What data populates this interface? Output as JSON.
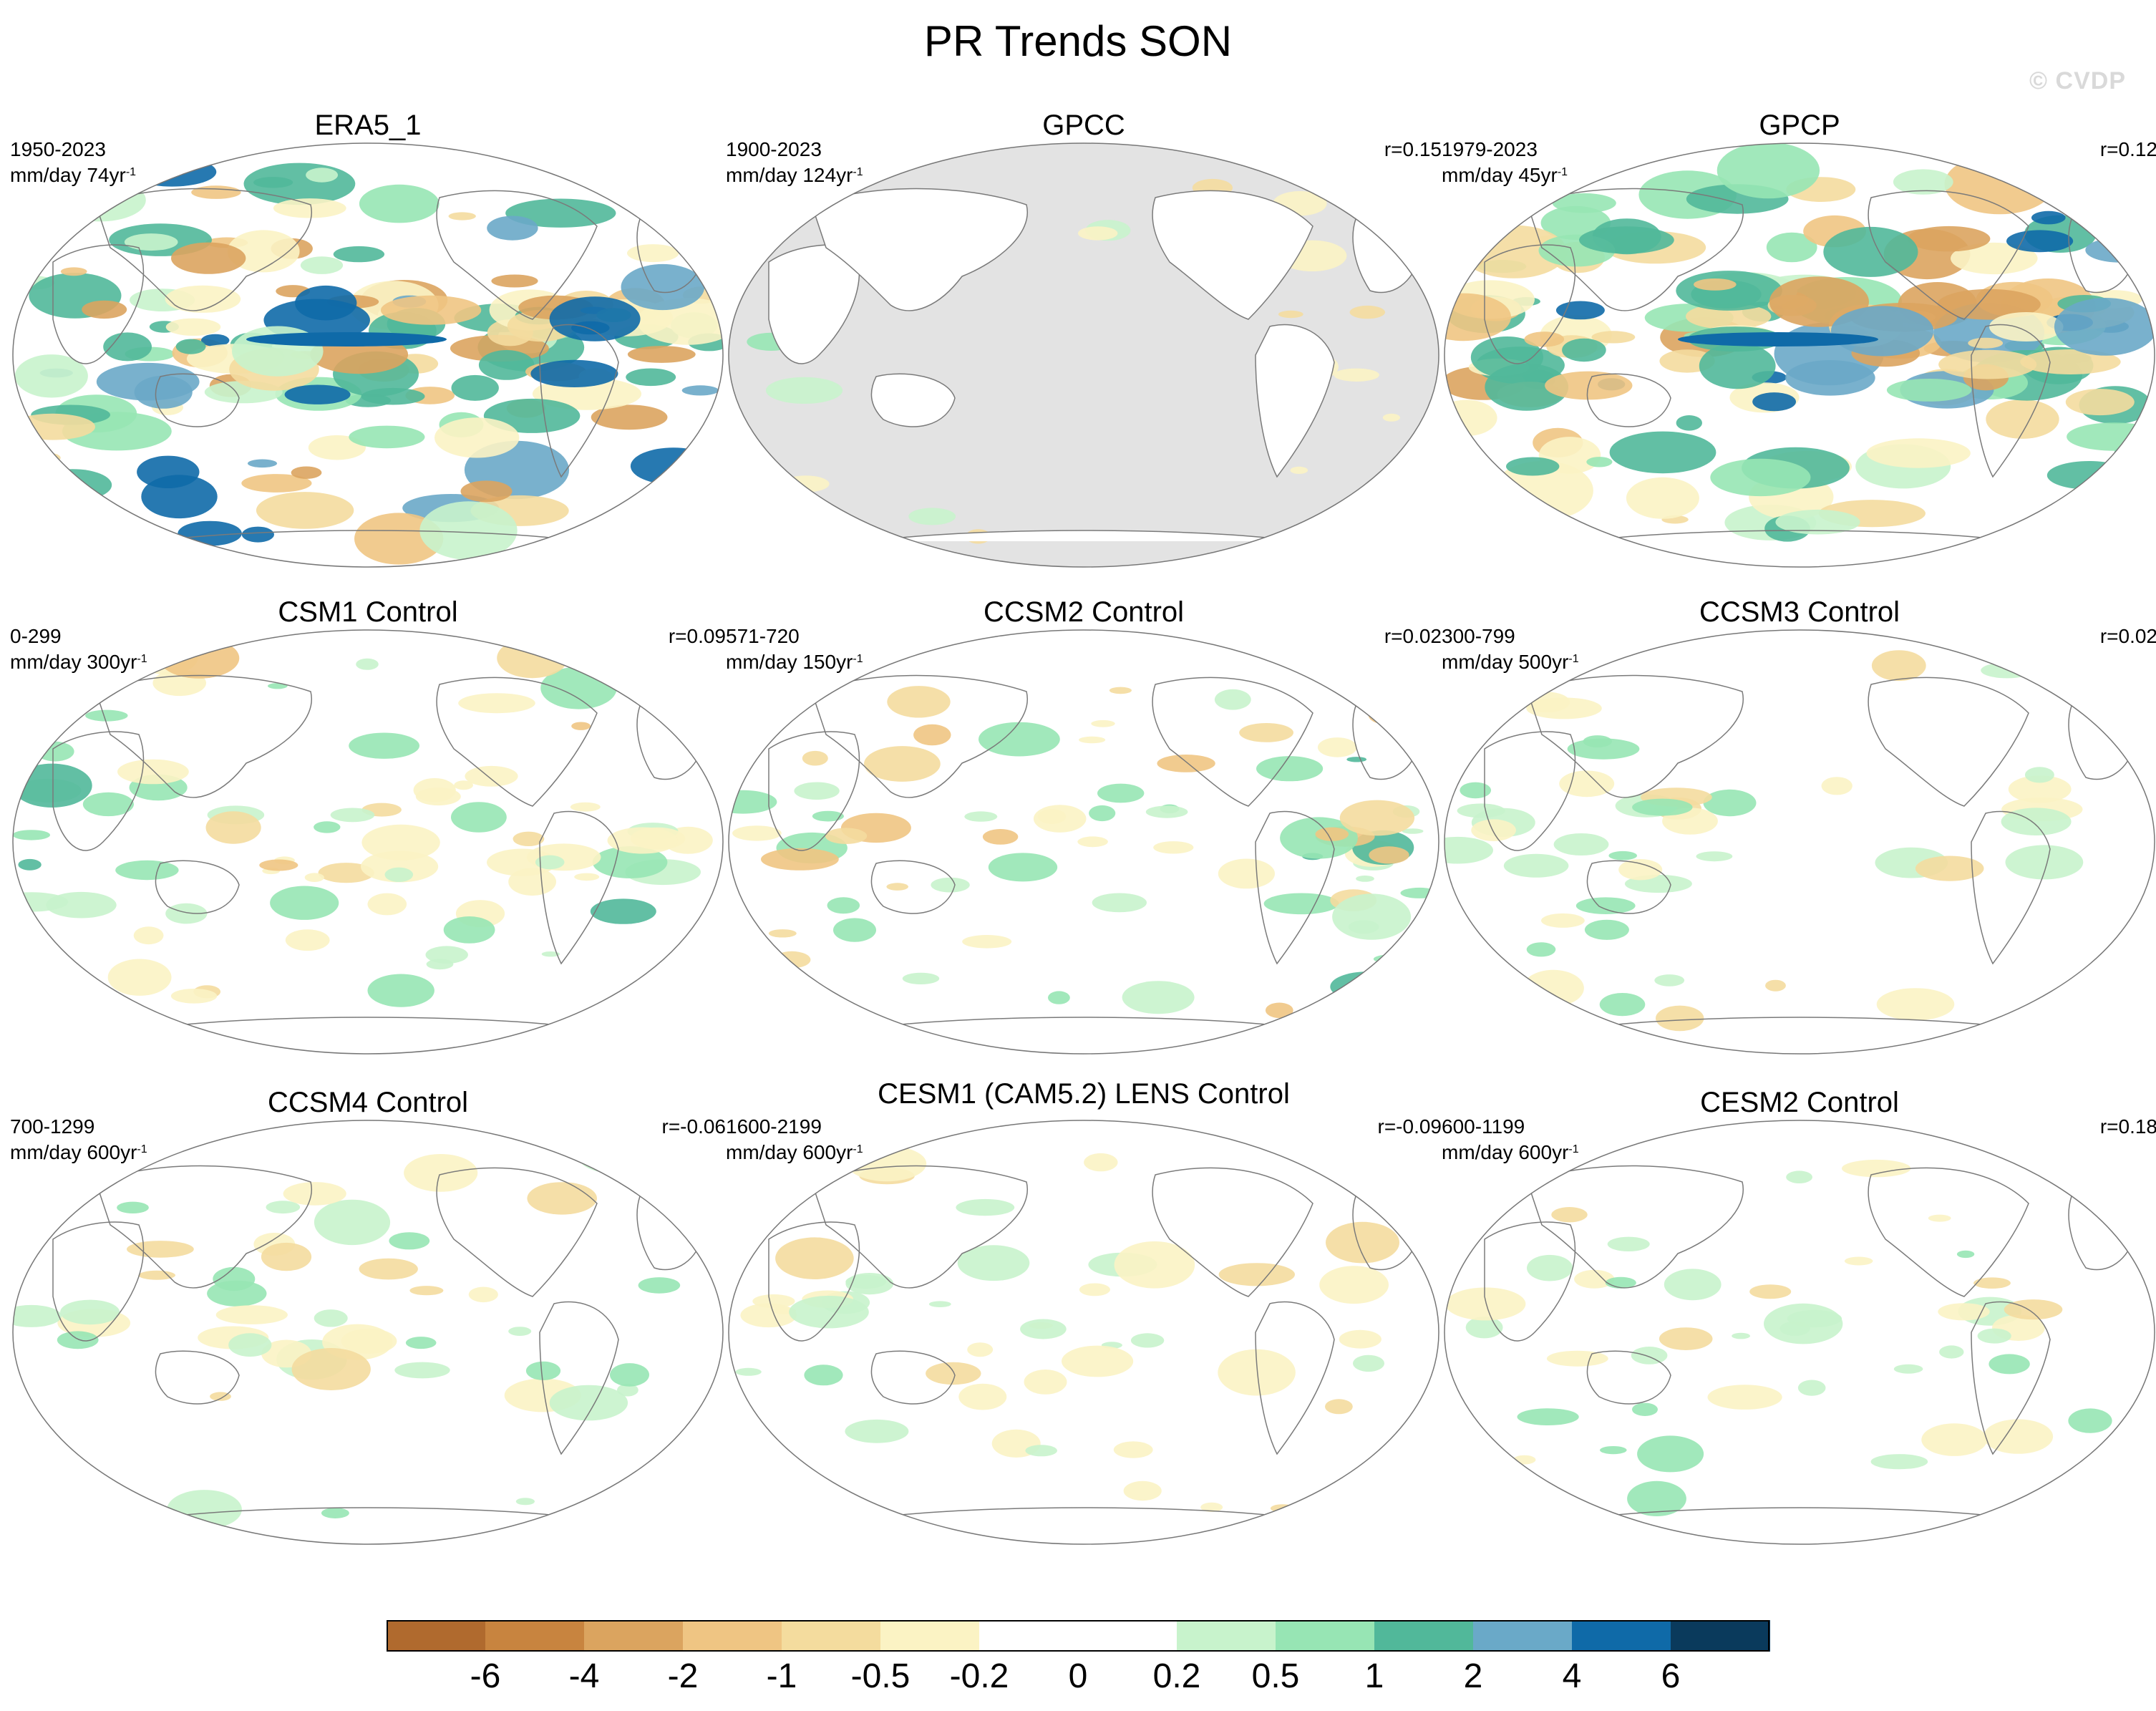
{
  "title": "PR Trends SON",
  "watermark": "© CVDP",
  "colorbar": {
    "labels": [
      "-6",
      "-4",
      "-2",
      "-1",
      "-0.5",
      "-0.2",
      "0",
      "0.2",
      "0.5",
      "1",
      "2",
      "4",
      "6"
    ],
    "colors": [
      "#b06a2e",
      "#c8843f",
      "#dba45f",
      "#efc583",
      "#f4dc9e",
      "#fbf3c4",
      "#ffffff",
      "#ffffff",
      "#c8f3cc",
      "#97e5b4",
      "#51b89a",
      "#6aa9c8",
      "#0f6aa8",
      "#0a3a5c"
    ]
  },
  "panels": [
    {
      "title": "ERA5_1",
      "period": "1950-2023",
      "units": "mm/day 74yr",
      "units_sup": "-1",
      "r": "",
      "land_mask": false,
      "level": 3
    },
    {
      "title": "GPCC",
      "period": "1900-2023",
      "units": "mm/day 124yr",
      "units_sup": "-1",
      "r": "r=0.15",
      "land_mask": true,
      "level": 1
    },
    {
      "title": "GPCP",
      "period": "1979-2023",
      "units": "mm/day 45yr",
      "units_sup": "-1",
      "r": "r=0.12",
      "land_mask": false,
      "level": 3
    },
    {
      "title": "CSM1 Control",
      "period": "0-299",
      "units": "mm/day 300yr",
      "units_sup": "-1",
      "r": "r=0.09",
      "land_mask": false,
      "level": 2
    },
    {
      "title": "CCSM2 Control",
      "period": "571-720",
      "units": "mm/day 150yr",
      "units_sup": "-1",
      "r": "r=0.02",
      "land_mask": false,
      "level": 2
    },
    {
      "title": "CCSM3 Control",
      "period": "300-799",
      "units": "mm/day 500yr",
      "units_sup": "-1",
      "r": "r=0.02",
      "land_mask": false,
      "level": 1
    },
    {
      "title": "CCSM4 Control",
      "period": "700-1299",
      "units": "mm/day 600yr",
      "units_sup": "-1",
      "r": "r=-0.06",
      "land_mask": false,
      "level": 1
    },
    {
      "title": "CESM1 (CAM5.2) LENS Control",
      "period": "1600-2199",
      "units": "mm/day 600yr",
      "units_sup": "-1",
      "r": "r=-0.09",
      "land_mask": false,
      "level": 1
    },
    {
      "title": "CESM2 Control",
      "period": "600-1199",
      "units": "mm/day 600yr",
      "units_sup": "-1",
      "r": "r=0.18",
      "land_mask": false,
      "level": 1
    }
  ]
}
